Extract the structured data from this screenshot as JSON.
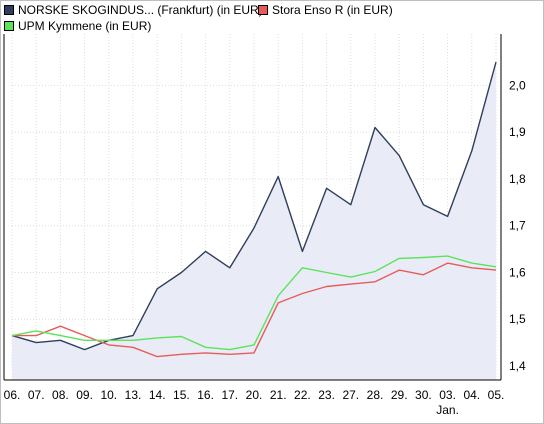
{
  "chart_data": {
    "type": "line",
    "title": "",
    "xlabel": "",
    "ylabel": "",
    "legend_position": "top",
    "x": [
      "06.",
      "07.",
      "08.",
      "09.",
      "10.",
      "13.",
      "14.",
      "15.",
      "16.",
      "17.",
      "20.",
      "21.",
      "22.",
      "23.",
      "27.",
      "28.",
      "29.",
      "30.",
      "03.",
      "04.",
      "05."
    ],
    "x_sublabels": [
      {
        "index": 18,
        "label": "Jan."
      }
    ],
    "y_ticks": [
      "1,4",
      "1,5",
      "1,6",
      "1,7",
      "1,8",
      "1,9",
      "2,0"
    ],
    "ylim": [
      1.37,
      2.11
    ],
    "grid": true,
    "series": [
      {
        "name": "NORSKE SKOGINDUS... (Frankfurt) (in EUR)",
        "color": "#2e3e5c",
        "fill": "#e9ecf6",
        "values": [
          1.465,
          1.45,
          1.455,
          1.435,
          1.455,
          1.465,
          1.565,
          1.6,
          1.645,
          1.61,
          1.695,
          1.805,
          1.645,
          1.78,
          1.745,
          1.91,
          1.85,
          1.745,
          1.72,
          1.86,
          2.05
        ]
      },
      {
        "name": "Stora Enso R (in EUR)",
        "color": "#e85b5b",
        "values": [
          1.465,
          1.465,
          1.485,
          1.465,
          1.445,
          1.44,
          1.42,
          1.425,
          1.428,
          1.425,
          1.428,
          1.535,
          1.555,
          1.57,
          1.575,
          1.58,
          1.605,
          1.595,
          1.62,
          1.61,
          1.605
        ]
      },
      {
        "name": "UPM Kymmene (in EUR)",
        "color": "#5be35b",
        "values": [
          1.465,
          1.475,
          1.465,
          1.455,
          1.455,
          1.455,
          1.46,
          1.463,
          1.44,
          1.435,
          1.445,
          1.55,
          1.61,
          1.6,
          1.59,
          1.602,
          1.63,
          1.632,
          1.635,
          1.62,
          1.612
        ]
      }
    ]
  }
}
